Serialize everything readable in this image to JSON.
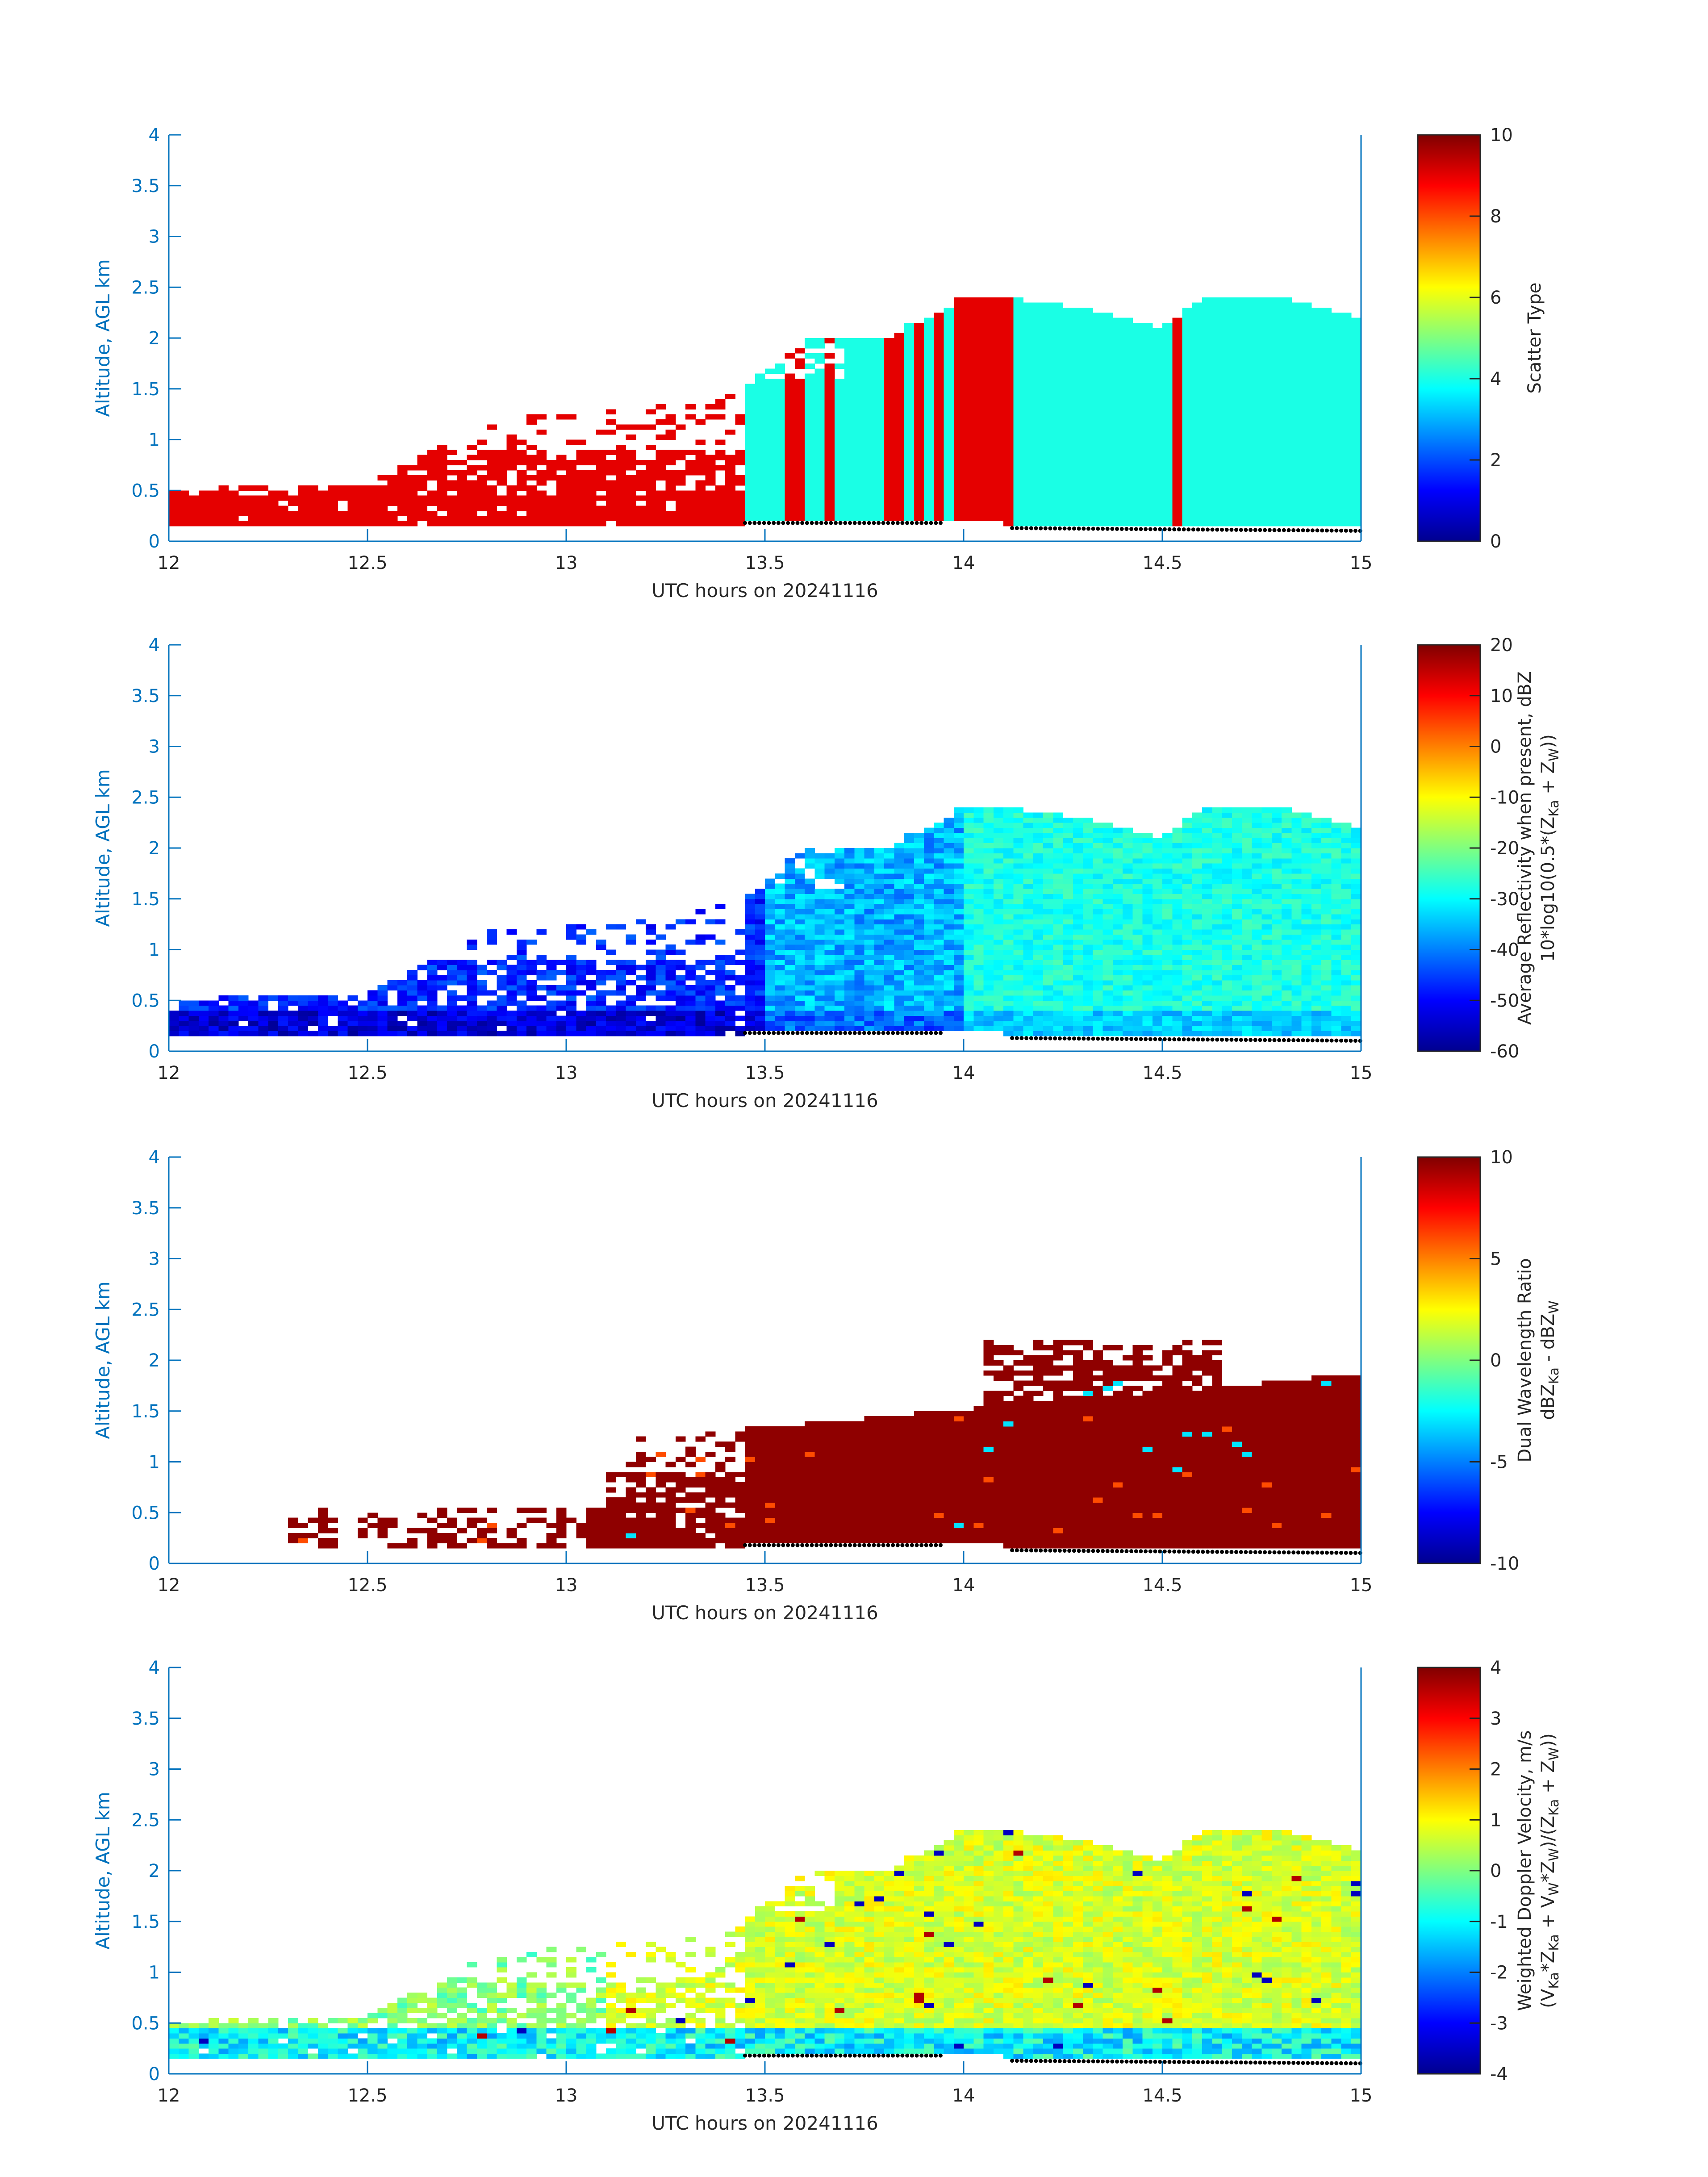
{
  "figure": {
    "axis_color": "#0072bd",
    "x_range": [
      12,
      15
    ],
    "y_range": [
      0,
      4
    ]
  },
  "chart_data": [
    {
      "type": "heatmap",
      "name": "scatter-type",
      "xlabel": "UTC hours on 20241116",
      "ylabel": "Altitude, AGL km",
      "xlim": [
        12,
        15
      ],
      "ylim": [
        0,
        4
      ],
      "x_ticks": [
        "12",
        "12.5",
        "13",
        "13.5",
        "14",
        "14.5",
        "15"
      ],
      "y_ticks": [
        "0",
        "0.5",
        "1",
        "1.5",
        "2",
        "2.5",
        "3",
        "3.5",
        "4"
      ],
      "colorbar": {
        "label_lines": [
          "Scatter Type"
        ],
        "range": [
          0,
          10
        ],
        "ticks": [
          "0",
          "2",
          "4",
          "6",
          "8",
          "10"
        ]
      },
      "surface_dots": true,
      "echo_top_km": [
        [
          12.0,
          0.5
        ],
        [
          12.2,
          0.55
        ],
        [
          12.5,
          0.55
        ],
        [
          12.8,
          1.2
        ],
        [
          13.0,
          1.25
        ],
        [
          13.3,
          1.35
        ],
        [
          13.45,
          1.5
        ],
        [
          13.6,
          2.0
        ],
        [
          13.8,
          2.0
        ],
        [
          14.0,
          2.4
        ],
        [
          14.1,
          2.4
        ],
        [
          14.3,
          2.3
        ],
        [
          14.5,
          2.1
        ],
        [
          14.6,
          2.4
        ],
        [
          14.8,
          2.4
        ],
        [
          15.0,
          2.2
        ]
      ],
      "segments": [
        {
          "x_start": 12.0,
          "x_end": 13.45,
          "value": 9,
          "label": "orange-red"
        },
        {
          "x_start": 13.45,
          "x_end": 14.12,
          "value": 4,
          "label": "cyan (with orange-red columns)"
        },
        {
          "x_start": 14.12,
          "x_end": 15.0,
          "value": 4,
          "label": "cyan"
        }
      ]
    },
    {
      "type": "heatmap",
      "name": "average-reflectivity",
      "xlabel": "UTC hours on 20241116",
      "ylabel": "Altitude, AGL km",
      "xlim": [
        12,
        15
      ],
      "ylim": [
        0,
        4
      ],
      "x_ticks": [
        "12",
        "12.5",
        "13",
        "13.5",
        "14",
        "14.5",
        "15"
      ],
      "y_ticks": [
        "0",
        "0.5",
        "1",
        "1.5",
        "2",
        "2.5",
        "3",
        "3.5",
        "4"
      ],
      "colorbar": {
        "label_lines": [
          "Average Reflectivity when present, dBZ",
          "10*log10(0.5*(Z",
          "Ka",
          " + Z",
          "W",
          "))"
        ],
        "range": [
          -60,
          20
        ],
        "ticks": [
          "-60",
          "-50",
          "-40",
          "-30",
          "-20",
          "-10",
          "0",
          "10",
          "20"
        ]
      },
      "surface_dots": true,
      "typical_values_dbz": {
        "low_level_before_13.5": -50,
        "cloud_after_14": -30
      }
    },
    {
      "type": "heatmap",
      "name": "dual-wavelength-ratio",
      "xlabel": "UTC hours on 20241116",
      "ylabel": "Altitude, AGL km",
      "xlim": [
        12,
        15
      ],
      "ylim": [
        0,
        4
      ],
      "x_ticks": [
        "12",
        "12.5",
        "13",
        "13.5",
        "14",
        "14.5",
        "15"
      ],
      "y_ticks": [
        "0",
        "0.5",
        "1",
        "1.5",
        "2",
        "2.5",
        "3",
        "3.5",
        "4"
      ],
      "colorbar": {
        "label_lines": [
          "Dual Wavelength Ratio",
          "dBZ",
          "Ka",
          " - dBZ",
          "W"
        ],
        "range": [
          -10,
          10
        ],
        "ticks": [
          "-10",
          "-5",
          "0",
          "5",
          "10"
        ]
      },
      "surface_dots": true,
      "dominant_value": 10
    },
    {
      "type": "heatmap",
      "name": "weighted-doppler-velocity",
      "xlabel": "UTC hours on 20241116",
      "ylabel": "Altitude, AGL km",
      "xlim": [
        12,
        15
      ],
      "ylim": [
        0,
        4
      ],
      "x_ticks": [
        "12",
        "12.5",
        "13",
        "13.5",
        "14",
        "14.5",
        "15"
      ],
      "y_ticks": [
        "0",
        "0.5",
        "1",
        "1.5",
        "2",
        "2.5",
        "3",
        "3.5",
        "4"
      ],
      "colorbar": {
        "label_lines": [
          "Weighted Doppler Velocity, m/s",
          "(V",
          "Ka",
          "*Z",
          "Ka",
          " + V",
          "W",
          "*Z",
          "W",
          ")/(Z",
          "Ka",
          " + Z",
          "W",
          "))"
        ],
        "range": [
          -4,
          4
        ],
        "ticks": [
          "-4",
          "-3",
          "-2",
          "-1",
          "0",
          "1",
          "2",
          "3",
          "4"
        ]
      },
      "surface_dots": true,
      "typical_values_ms": {
        "near_surface": -2,
        "cloud_body": 1
      }
    }
  ]
}
